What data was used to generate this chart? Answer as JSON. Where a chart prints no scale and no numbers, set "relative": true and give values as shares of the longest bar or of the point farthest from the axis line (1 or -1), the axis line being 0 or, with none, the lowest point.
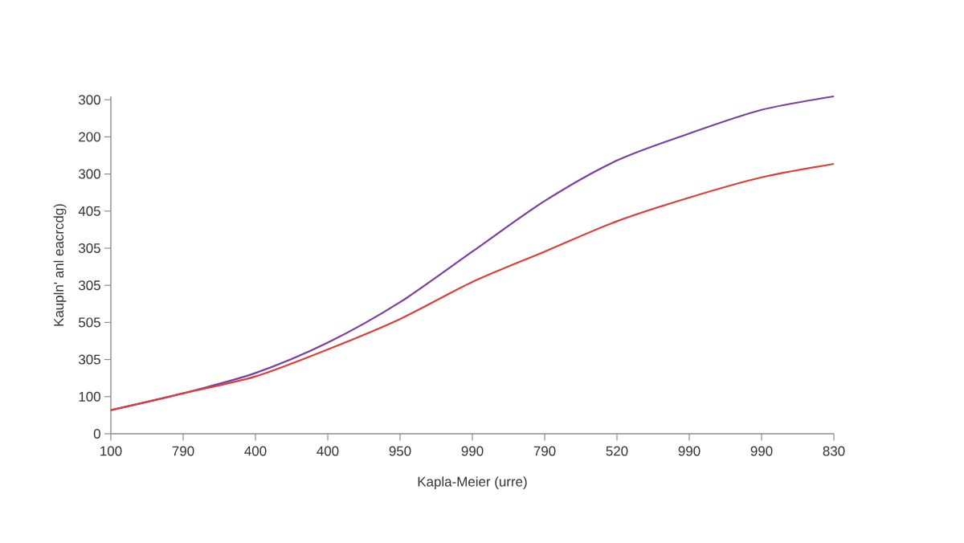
{
  "chart_data": {
    "type": "line",
    "xlabel": "Kapla-Meier (urre)",
    "ylabel": "Kaupln' anl eacrcdg)",
    "categories": [
      "100",
      "790",
      "400",
      "400",
      "950",
      "990",
      "790",
      "520",
      "990",
      "990",
      "830"
    ],
    "relative": true,
    "annotations": [
      "300",
      "200",
      "300",
      "405",
      "305",
      "305",
      "505",
      "305",
      "100",
      "0"
    ],
    "legend": false,
    "marker": "none",
    "line_style": "solid",
    "series": [
      {
        "color": "#7b3fa0",
        "values": [
          0.07,
          0.12,
          0.18,
          0.27,
          0.39,
          0.54,
          0.69,
          0.81,
          0.89,
          0.96,
          1
        ]
      },
      {
        "color": "#d9403a",
        "values": [
          0.07,
          0.12,
          0.17,
          0.25,
          0.34,
          0.45,
          0.54,
          0.63,
          0.7,
          0.76,
          0.8
        ]
      }
    ]
  }
}
